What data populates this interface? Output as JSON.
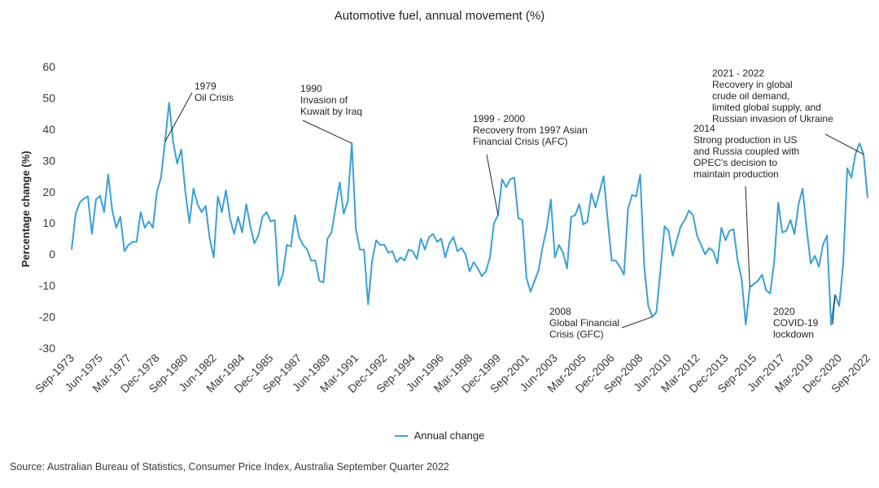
{
  "chart_data": {
    "type": "line",
    "title": "Automotive fuel, annual movement (%)",
    "ylabel": "Percentage change (%)",
    "xlabel": "",
    "ylim": [
      -30,
      60
    ],
    "yticks": [
      60,
      50,
      40,
      30,
      20,
      10,
      0,
      -10,
      -20,
      -30
    ],
    "grid": false,
    "legend": "bottom-center",
    "color": "#3aa0d4",
    "x_tick_labels": [
      "Sep-1973",
      "Jun-1975",
      "Mar-1977",
      "Dec-1978",
      "Sep-1980",
      "Jun-1982",
      "Mar-1984",
      "Dec-1985",
      "Sep-1987",
      "Jun-1989",
      "Mar-1991",
      "Dec-1992",
      "Sep-1994",
      "Jun-1996",
      "Mar-1998",
      "Dec-1999",
      "Sep-2001",
      "Jun-2003",
      "Mar-2005",
      "Dec-2006",
      "Sep-2008",
      "Jun-2010",
      "Mar-2012",
      "Dec-2013",
      "Sep-2015",
      "Jun-2017",
      "Mar-2019",
      "Dec-2020",
      "Sep-2022"
    ],
    "series": [
      {
        "name": "Annual change",
        "start": "Sep-1973",
        "frequency": "quarterly",
        "values": [
          1.5,
          13,
          16.5,
          17.8,
          18.5,
          6.5,
          17.5,
          18.7,
          13.5,
          25.5,
          14,
          8.5,
          12,
          1,
          3,
          4,
          4,
          13.5,
          8.5,
          10.5,
          8.5,
          20,
          24.5,
          36,
          48.5,
          36,
          29,
          33.5,
          20,
          10,
          21,
          16,
          13.5,
          15.5,
          5,
          -1,
          18.5,
          13.5,
          20.5,
          11.5,
          6.5,
          12,
          7,
          16,
          9,
          3.5,
          6,
          12,
          13.5,
          10.5,
          11,
          -10,
          -6.5,
          3,
          2.5,
          12.5,
          5.5,
          3,
          1.5,
          -2,
          -2,
          -8.5,
          -9,
          5,
          7,
          15,
          23,
          13,
          17,
          35.5,
          8,
          1.5,
          1.5,
          -16,
          -2,
          4.5,
          3,
          3,
          0.5,
          1,
          -2.5,
          -1,
          -2,
          1.5,
          1,
          -1.5,
          5,
          1.5,
          5.5,
          6.5,
          4,
          5,
          -1,
          3.5,
          5.5,
          1,
          2,
          0,
          -5.5,
          -2.5,
          -4.5,
          -7,
          -5.5,
          -1,
          10,
          12.5,
          24,
          21.5,
          24,
          24.5,
          11.5,
          11,
          -7.5,
          -12,
          -8.5,
          -5,
          2.5,
          8.5,
          17.5,
          -1,
          3,
          0.5,
          -4.5,
          12,
          12.5,
          16,
          9.5,
          10.5,
          19.5,
          15,
          20,
          25,
          11,
          -2,
          -2,
          -4,
          -6.5,
          14.5,
          19,
          18.5,
          25.5,
          -4,
          -16.5,
          -20,
          -18.5,
          -5,
          9,
          7.5,
          -0.5,
          4.5,
          9,
          11,
          14,
          12.5,
          6,
          3,
          0,
          2,
          1,
          -3,
          8.5,
          4.5,
          7.5,
          8,
          -2,
          -8,
          -22.5,
          -10.5,
          -9.5,
          -8.5,
          -6.5,
          -11.5,
          -12.5,
          -2.5,
          16.5,
          7,
          7.5,
          11,
          6.5,
          16,
          21,
          8,
          -3,
          -0.5,
          -4,
          3,
          6,
          -22.5,
          -13,
          -16.5,
          -3,
          27.5,
          24.5,
          32,
          35.5,
          32,
          18
        ]
      }
    ],
    "annotations": [
      {
        "lines": [
          "1979",
          "Oil Crisis"
        ],
        "point": "Jun-1979"
      },
      {
        "lines": [
          "1990",
          "Invasion of",
          "Kuwait by Iraq"
        ],
        "point": "Dec-1990"
      },
      {
        "lines": [
          "1999 - 2000",
          "Recovery from 1997 Asian",
          "Financial Crisis (AFC)"
        ],
        "point": "Dec-1999"
      },
      {
        "lines": [
          "2008",
          "Global Financial",
          "Crisis (GFC)"
        ],
        "point": "Jun-2009"
      },
      {
        "lines": [
          "2014",
          "Strong production in US",
          "and Russia coupled with",
          "OPEC's decision to",
          "maintain production"
        ],
        "point": "Jun-2015"
      },
      {
        "lines": [
          "2020",
          "COVID-19",
          "lockdown"
        ],
        "point": "Sep-2020"
      },
      {
        "lines": [
          "2021 - 2022",
          "Recovery in global",
          "crude oil demand,",
          "limited global supply, and",
          "Russian invasion of Ukraine"
        ],
        "point": "Jun-2022"
      }
    ]
  },
  "legend": {
    "label": "Annual change"
  },
  "source": "Source: Australian Bureau of Statistics, Consumer Price Index, Australia September Quarter 2022"
}
